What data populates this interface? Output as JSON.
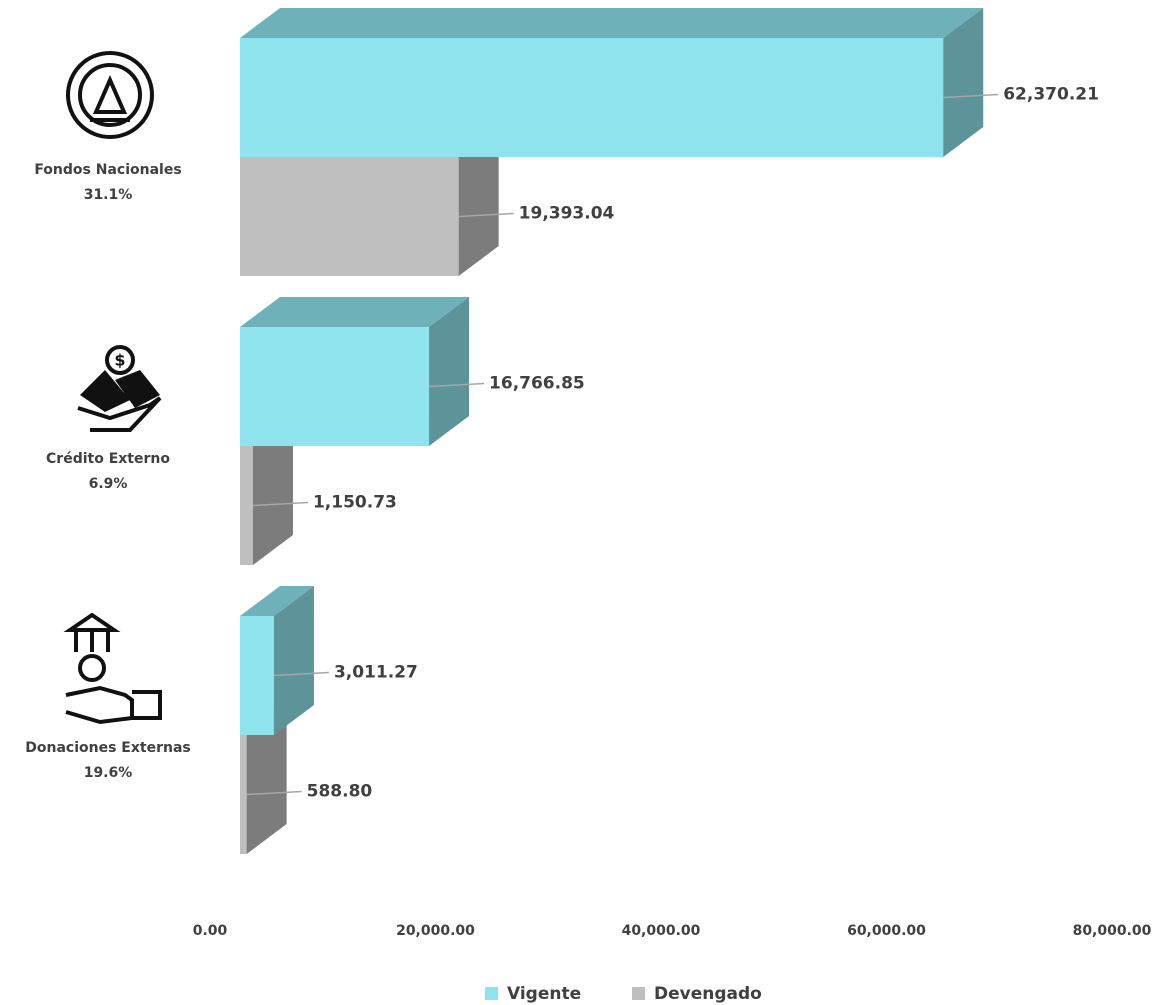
{
  "chart_data": {
    "type": "bar3d",
    "categories": [
      "Fondos Nacionales",
      "Crédito Externo",
      "Donaciones Externas"
    ],
    "category_shares": [
      "31.1%",
      "6.9%",
      "19.6%"
    ],
    "series": [
      {
        "name": "Vigente",
        "color": "#8ee3ec",
        "values": [
          62370.21,
          16766.85,
          3011.27
        ],
        "value_labels": [
          "62,370.21",
          "16,766.85",
          "3,011.27"
        ]
      },
      {
        "name": "Devengado",
        "color": "#bfbfbf",
        "values": [
          19393.04,
          1150.73,
          588.8
        ],
        "value_labels": [
          "19,393.04",
          "1,150.73",
          "588.80"
        ]
      }
    ],
    "xlim": [
      0,
      80000
    ],
    "xticks": [
      {
        "value": 0,
        "label": "0.00"
      },
      {
        "value": 20000,
        "label": "20,000.00"
      },
      {
        "value": 40000,
        "label": "40,000.00"
      },
      {
        "value": 60000,
        "label": "60,000.00"
      },
      {
        "value": 80000,
        "label": "80,000.00"
      }
    ],
    "legend": "bottom"
  }
}
